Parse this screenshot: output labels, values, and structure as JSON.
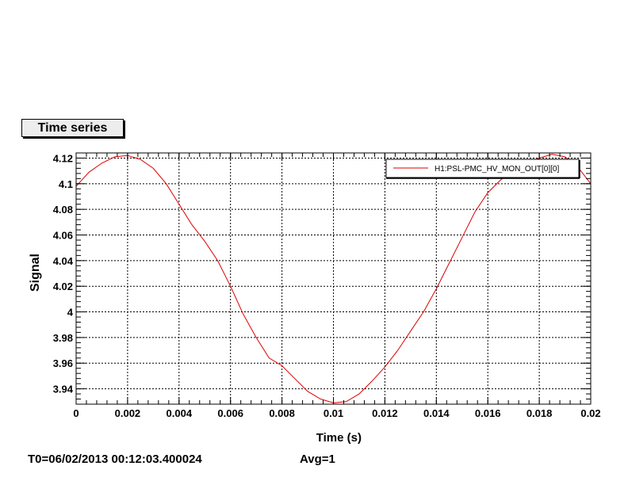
{
  "chart_data": {
    "type": "line",
    "title": "Time series",
    "xlabel": "Time (s)",
    "ylabel": "Signal",
    "xlim": [
      0,
      0.02
    ],
    "ylim": [
      3.928,
      4.124
    ],
    "grid": true,
    "legend_position": "top-right",
    "x_ticks": [
      0,
      0.002,
      0.004,
      0.006,
      0.008,
      0.01,
      0.012,
      0.014,
      0.016,
      0.018,
      0.02
    ],
    "x_tick_labels": [
      "0",
      "0.002",
      "0.004",
      "0.006",
      "0.008",
      "0.01",
      "0.012",
      "0.014",
      "0.016",
      "0.018",
      "0.02"
    ],
    "y_ticks": [
      3.94,
      3.96,
      3.98,
      4.0,
      4.02,
      4.04,
      4.06,
      4.08,
      4.1,
      4.12
    ],
    "y_tick_labels": [
      "3.94",
      "3.96",
      "3.98",
      "4",
      "4.02",
      "4.04",
      "4.06",
      "4.08",
      "4.1",
      "4.12"
    ],
    "series": [
      {
        "name": "H1:PSL-PMC_HV_MON_OUT[0][0]",
        "color": "#dd0000",
        "x": [
          0,
          0.0005,
          0.001,
          0.0015,
          0.002,
          0.0025,
          0.003,
          0.0035,
          0.004,
          0.0045,
          0.005,
          0.0055,
          0.006,
          0.0065,
          0.007,
          0.0075,
          0.008,
          0.0085,
          0.009,
          0.0095,
          0.01,
          0.0105,
          0.011,
          0.0115,
          0.012,
          0.0125,
          0.013,
          0.0135,
          0.014,
          0.0145,
          0.015,
          0.0155,
          0.016,
          0.0165,
          0.017,
          0.0175,
          0.018,
          0.0185,
          0.019,
          0.0195,
          0.02
        ],
        "y": [
          4.098,
          4.109,
          4.116,
          4.121,
          4.122,
          4.119,
          4.112,
          4.1,
          4.084,
          4.068,
          4.055,
          4.04,
          4.02,
          3.998,
          3.98,
          3.964,
          3.958,
          3.948,
          3.938,
          3.932,
          3.929,
          3.93,
          3.936,
          3.946,
          3.957,
          3.97,
          3.985,
          4.0,
          4.018,
          4.038,
          4.058,
          4.078,
          4.093,
          4.103,
          4.11,
          4.116,
          4.12,
          4.123,
          4.121,
          4.113,
          4.1
        ]
      }
    ]
  },
  "footer": {
    "t0": "T0=06/02/2013 00:12:03.400024",
    "avg": "Avg=1"
  }
}
